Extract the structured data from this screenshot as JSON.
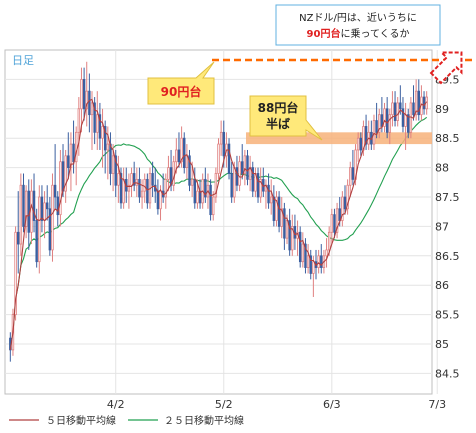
{
  "chart_data": {
    "type": "candlestick",
    "period_label": "日足",
    "ylim": [
      84.15,
      90.0
    ],
    "y_ticks": [
      84.5,
      85,
      85.5,
      86,
      86.5,
      87,
      87.5,
      88,
      88.5,
      89,
      89.5
    ],
    "x_ticks": [
      {
        "label": "4/2",
        "index": 40
      },
      {
        "label": "5/2",
        "index": 81
      },
      {
        "label": "6/3",
        "index": 122
      },
      {
        "label": "7/3",
        "index": 162
      }
    ],
    "candles": [
      [
        85.1,
        85.2,
        84.7,
        84.9
      ],
      [
        84.9,
        85.6,
        84.8,
        85.5
      ],
      [
        85.5,
        87.0,
        85.4,
        86.9
      ],
      [
        86.9,
        87.6,
        86.2,
        86.7
      ],
      [
        86.7,
        87.9,
        86.5,
        87.7
      ],
      [
        87.7,
        87.9,
        86.9,
        87.0
      ],
      [
        87.0,
        87.7,
        86.8,
        87.6
      ],
      [
        87.6,
        87.8,
        86.6,
        86.9
      ],
      [
        86.9,
        87.8,
        86.7,
        87.6
      ],
      [
        87.6,
        87.9,
        86.9,
        87.1
      ],
      [
        87.1,
        87.3,
        86.3,
        86.4
      ],
      [
        86.4,
        87.7,
        86.2,
        87.5
      ],
      [
        87.5,
        87.7,
        86.9,
        87.1
      ],
      [
        87.1,
        87.6,
        86.8,
        87.4
      ],
      [
        87.4,
        87.7,
        87.1,
        87.3
      ],
      [
        87.3,
        87.5,
        86.5,
        86.6
      ],
      [
        86.6,
        87.9,
        86.4,
        87.7
      ],
      [
        87.7,
        88.4,
        87.3,
        87.5
      ],
      [
        87.5,
        87.6,
        87.0,
        87.2
      ],
      [
        87.2,
        88.3,
        87.0,
        88.1
      ],
      [
        88.1,
        88.4,
        87.5,
        87.6
      ],
      [
        87.6,
        88.3,
        87.4,
        88.2
      ],
      [
        88.2,
        88.6,
        87.8,
        88.0
      ],
      [
        88.0,
        88.6,
        87.6,
        88.4
      ],
      [
        88.4,
        88.8,
        87.9,
        88.1
      ],
      [
        88.1,
        88.7,
        87.7,
        88.6
      ],
      [
        88.6,
        89.2,
        88.2,
        89.0
      ],
      [
        89.0,
        89.7,
        88.6,
        89.5
      ],
      [
        89.5,
        89.7,
        88.8,
        89.0
      ],
      [
        89.0,
        89.8,
        88.7,
        89.3
      ],
      [
        89.3,
        89.6,
        88.6,
        88.9
      ],
      [
        88.9,
        89.3,
        88.3,
        89.1
      ],
      [
        89.1,
        89.2,
        88.4,
        88.6
      ],
      [
        88.6,
        89.3,
        88.3,
        88.9
      ],
      [
        88.9,
        89.1,
        88.3,
        88.5
      ],
      [
        88.5,
        89.0,
        88.0,
        88.7
      ],
      [
        88.7,
        88.8,
        87.9,
        88.3
      ],
      [
        88.3,
        88.7,
        87.8,
        88.4
      ],
      [
        88.4,
        88.6,
        87.7,
        87.9
      ],
      [
        87.9,
        88.4,
        87.6,
        88.2
      ],
      [
        88.2,
        88.3,
        87.5,
        87.7
      ],
      [
        87.7,
        88.2,
        87.4,
        87.9
      ],
      [
        87.9,
        88.0,
        87.3,
        87.4
      ],
      [
        87.4,
        88.0,
        87.3,
        87.8
      ],
      [
        87.8,
        88.0,
        87.4,
        87.6
      ],
      [
        87.6,
        87.9,
        87.3,
        87.7
      ],
      [
        87.7,
        88.0,
        87.5,
        87.9
      ],
      [
        87.9,
        88.1,
        87.6,
        87.7
      ],
      [
        87.7,
        88.0,
        87.5,
        87.8
      ],
      [
        87.8,
        88.0,
        87.4,
        87.5
      ],
      [
        87.5,
        87.8,
        87.3,
        87.6
      ],
      [
        87.6,
        87.9,
        87.4,
        87.8
      ],
      [
        87.8,
        87.9,
        87.3,
        87.4
      ],
      [
        87.4,
        88.0,
        87.3,
        87.9
      ],
      [
        87.9,
        88.1,
        87.5,
        87.7
      ],
      [
        87.7,
        88.0,
        87.4,
        87.6
      ],
      [
        87.6,
        87.8,
        87.2,
        87.3
      ],
      [
        87.3,
        87.7,
        87.1,
        87.6
      ],
      [
        87.6,
        87.9,
        87.4,
        87.5
      ],
      [
        87.5,
        87.9,
        87.3,
        87.8
      ],
      [
        87.8,
        88.2,
        87.6,
        88.0
      ],
      [
        88.0,
        88.3,
        87.6,
        87.7
      ],
      [
        87.7,
        88.2,
        87.6,
        88.1
      ],
      [
        88.1,
        88.5,
        87.9,
        88.3
      ],
      [
        88.3,
        88.6,
        88.0,
        88.1
      ],
      [
        88.1,
        88.7,
        88.0,
        88.5
      ],
      [
        88.5,
        88.6,
        87.9,
        88.0
      ],
      [
        88.0,
        88.4,
        87.8,
        88.2
      ],
      [
        88.2,
        88.3,
        87.6,
        87.7
      ],
      [
        87.7,
        88.1,
        87.5,
        87.8
      ],
      [
        87.8,
        88.0,
        87.3,
        87.4
      ],
      [
        87.4,
        87.8,
        87.3,
        87.6
      ],
      [
        87.6,
        87.8,
        87.3,
        87.4
      ],
      [
        87.4,
        87.9,
        87.3,
        87.8
      ],
      [
        87.8,
        88.0,
        87.4,
        87.5
      ],
      [
        87.5,
        87.9,
        87.3,
        87.7
      ],
      [
        87.7,
        87.8,
        87.1,
        87.2
      ],
      [
        87.2,
        87.6,
        87.1,
        87.5
      ],
      [
        87.5,
        88.0,
        87.4,
        87.9
      ],
      [
        87.9,
        88.5,
        87.8,
        88.4
      ],
      [
        88.4,
        88.8,
        88.2,
        88.6
      ],
      [
        88.6,
        88.8,
        88.0,
        88.2
      ],
      [
        88.2,
        88.6,
        88.0,
        88.4
      ],
      [
        88.4,
        88.5,
        87.8,
        87.9
      ],
      [
        87.9,
        88.1,
        87.4,
        87.5
      ],
      [
        87.5,
        88.1,
        87.4,
        88.0
      ],
      [
        88.0,
        88.2,
        87.6,
        87.7
      ],
      [
        87.7,
        88.2,
        87.6,
        88.1
      ],
      [
        88.1,
        88.4,
        87.8,
        87.9
      ],
      [
        87.9,
        88.3,
        87.7,
        88.2
      ],
      [
        88.2,
        88.3,
        87.7,
        87.8
      ],
      [
        87.8,
        88.2,
        87.6,
        88.0
      ],
      [
        88.0,
        88.1,
        87.5,
        87.6
      ],
      [
        87.6,
        88.0,
        87.5,
        87.9
      ],
      [
        87.9,
        88.0,
        87.4,
        87.5
      ],
      [
        87.5,
        88.0,
        87.4,
        87.8
      ],
      [
        87.8,
        88.0,
        87.5,
        87.6
      ],
      [
        87.6,
        87.8,
        87.3,
        87.7
      ],
      [
        87.7,
        87.9,
        87.3,
        87.4
      ],
      [
        87.4,
        87.8,
        87.2,
        87.5
      ],
      [
        87.5,
        87.7,
        87.0,
        87.1
      ],
      [
        87.1,
        87.6,
        87.0,
        87.5
      ],
      [
        87.5,
        87.6,
        86.9,
        87.0
      ],
      [
        87.0,
        87.5,
        86.8,
        87.3
      ],
      [
        87.3,
        87.4,
        86.6,
        86.8
      ],
      [
        86.8,
        87.2,
        86.7,
        87.1
      ],
      [
        87.1,
        87.3,
        86.5,
        86.6
      ],
      [
        86.6,
        87.2,
        86.5,
        87.0
      ],
      [
        87.0,
        87.2,
        86.6,
        86.8
      ],
      [
        86.8,
        87.1,
        86.5,
        86.9
      ],
      [
        86.9,
        87.0,
        86.3,
        86.4
      ],
      [
        86.4,
        86.9,
        86.3,
        86.7
      ],
      [
        86.7,
        86.8,
        86.2,
        86.3
      ],
      [
        86.3,
        86.7,
        86.2,
        86.5
      ],
      [
        86.5,
        86.6,
        86.1,
        86.2
      ],
      [
        86.2,
        86.5,
        85.8,
        86.4
      ],
      [
        86.4,
        86.6,
        86.1,
        86.3
      ],
      [
        86.3,
        86.6,
        86.2,
        86.5
      ],
      [
        86.5,
        86.7,
        86.2,
        86.3
      ],
      [
        86.3,
        86.6,
        86.2,
        86.5
      ],
      [
        86.5,
        86.8,
        86.3,
        86.6
      ],
      [
        86.6,
        87.0,
        86.5,
        86.9
      ],
      [
        86.9,
        87.3,
        86.7,
        87.2
      ],
      [
        87.2,
        87.3,
        86.8,
        86.9
      ],
      [
        86.9,
        87.4,
        86.8,
        87.3
      ],
      [
        87.3,
        87.5,
        87.0,
        87.1
      ],
      [
        87.1,
        87.6,
        87.0,
        87.5
      ],
      [
        87.5,
        87.7,
        87.2,
        87.3
      ],
      [
        87.3,
        87.8,
        87.2,
        87.7
      ],
      [
        87.7,
        88.1,
        87.5,
        88.0
      ],
      [
        88.0,
        88.3,
        87.7,
        87.8
      ],
      [
        87.8,
        88.4,
        87.7,
        88.3
      ],
      [
        88.3,
        88.6,
        88.1,
        88.5
      ],
      [
        88.5,
        88.6,
        88.2,
        88.3
      ],
      [
        88.3,
        88.8,
        88.2,
        88.7
      ],
      [
        88.7,
        88.9,
        88.3,
        88.4
      ],
      [
        88.4,
        88.8,
        88.3,
        88.6
      ],
      [
        88.6,
        88.8,
        88.3,
        88.4
      ],
      [
        88.4,
        88.9,
        88.3,
        88.8
      ],
      [
        88.8,
        89.1,
        88.5,
        88.6
      ],
      [
        88.6,
        89.0,
        88.5,
        88.9
      ],
      [
        88.9,
        89.2,
        88.6,
        88.7
      ],
      [
        88.7,
        89.1,
        88.6,
        89.0
      ],
      [
        89.0,
        89.2,
        88.5,
        88.6
      ],
      [
        88.6,
        89.0,
        88.4,
        88.9
      ],
      [
        88.9,
        89.3,
        88.7,
        89.1
      ],
      [
        89.1,
        89.3,
        88.7,
        88.8
      ],
      [
        88.8,
        89.2,
        88.7,
        89.1
      ],
      [
        89.1,
        89.4,
        88.9,
        89.0
      ],
      [
        89.0,
        89.2,
        88.6,
        88.7
      ],
      [
        88.7,
        89.1,
        88.3,
        88.9
      ],
      [
        88.9,
        89.0,
        88.5,
        88.6
      ],
      [
        88.6,
        89.2,
        88.5,
        89.1
      ],
      [
        89.1,
        89.4,
        88.8,
        88.9
      ],
      [
        88.9,
        89.5,
        88.8,
        89.3
      ],
      [
        89.3,
        89.5,
        88.8,
        88.9
      ],
      [
        88.9,
        89.4,
        88.8,
        89.2
      ],
      [
        89.2,
        89.3,
        88.9,
        89.0
      ],
      [
        89.0,
        89.3,
        88.9,
        89.2
      ]
    ],
    "series": [
      {
        "name": "５日移動平均線",
        "color": "#b04040"
      },
      {
        "name": "２５日移動平均線",
        "color": "#22a050"
      }
    ],
    "horizontal_band": {
      "label_line1": "88円台",
      "label_line2": "半ば",
      "low": 88.4,
      "high": 88.6
    },
    "dashed_line": {
      "label": "90円台",
      "value": 90.0
    }
  },
  "annotation": {
    "line1": "NZドル/円は、近いうちに",
    "highlight": "90円台",
    "rest": "に乗ってくるか"
  },
  "colors": {
    "up": "#e08080",
    "down": "#3a5fa0",
    "ma5": "#b04040",
    "ma25": "#22a050",
    "band": "#f7b27a",
    "dash": "#ff6a00",
    "callout_fill": "#ffe97a"
  }
}
